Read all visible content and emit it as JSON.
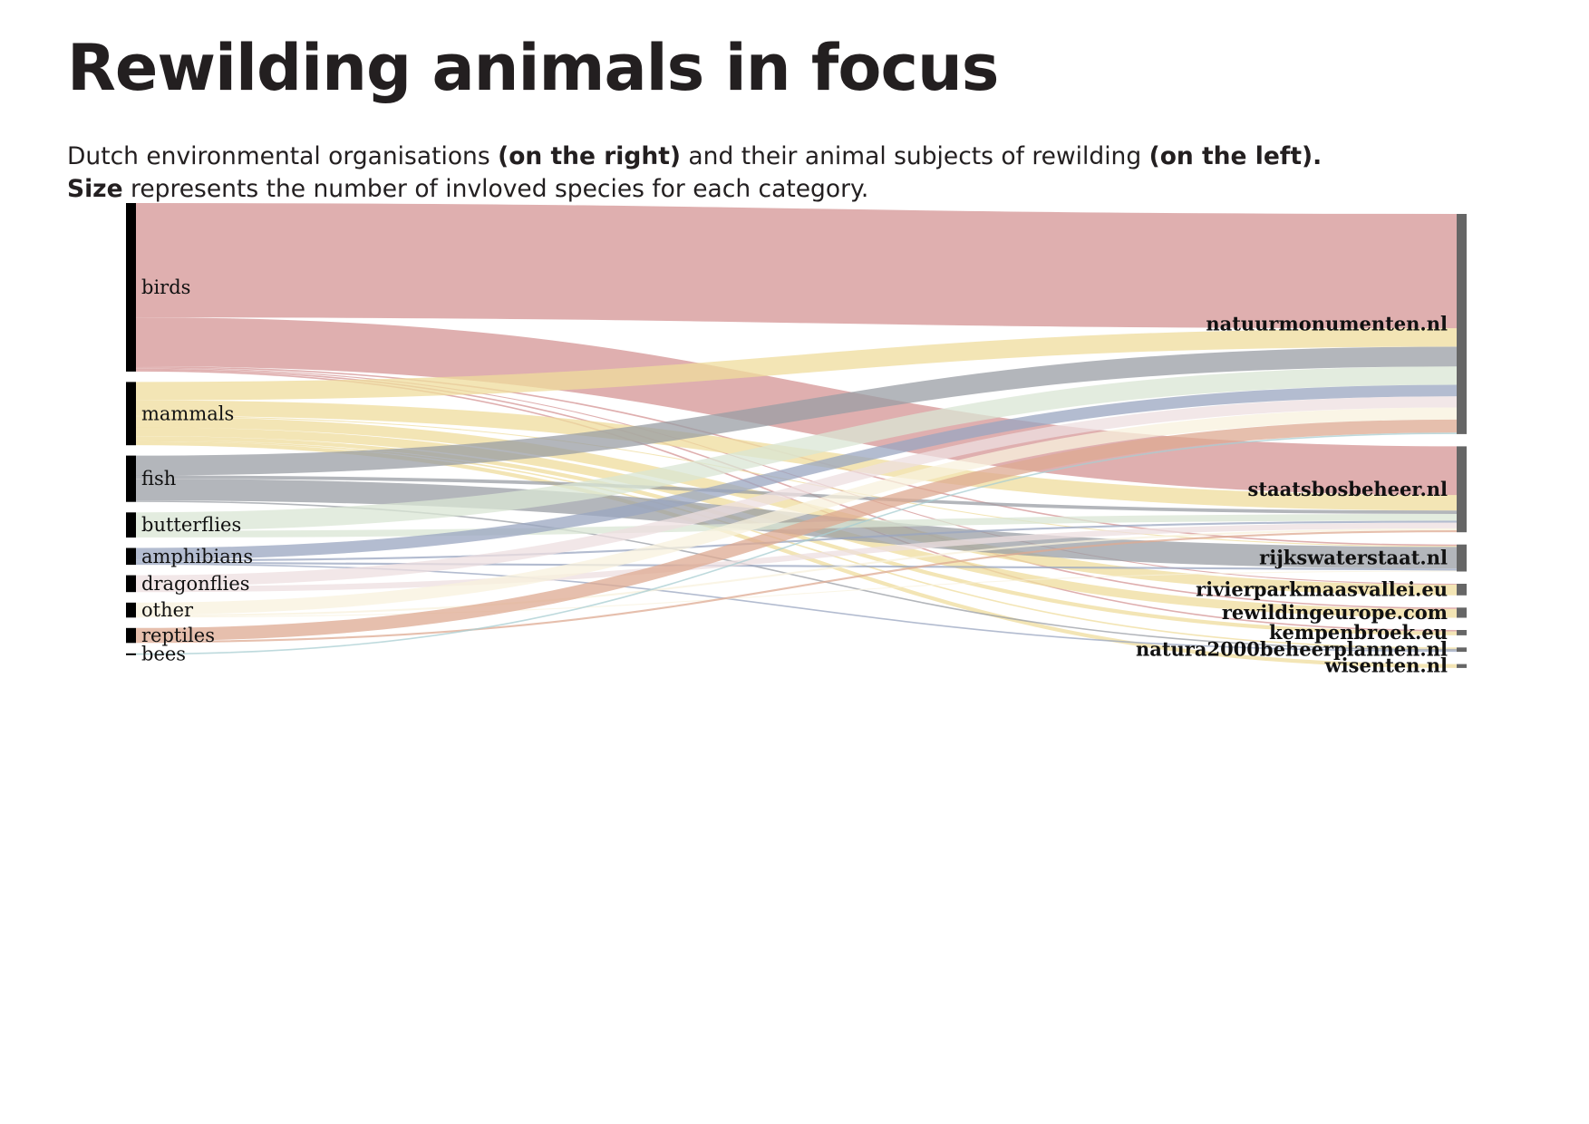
{
  "title": "Rewilding animals in focus",
  "subtitle": {
    "line1_a": "Dutch environmental organisations ",
    "line1_b": "(on the right)",
    "line1_c": "  and their animal subjects of rewilding ",
    "line1_d": "(on the left).",
    "line2_a": "Size",
    "line2_b": " represents the number of invloved species for each category."
  },
  "chart_data": {
    "type": "sankey",
    "sources": [
      {
        "name": "birds",
        "color": "#d49494"
      },
      {
        "name": "mammals",
        "color": "#efdc9c"
      },
      {
        "name": "fish",
        "color": "#999da4"
      },
      {
        "name": "butterflies",
        "color": "#d9e6d4"
      },
      {
        "name": "amphibians",
        "color": "#9aa6c0"
      },
      {
        "name": "dragonflies",
        "color": "#eedfe0"
      },
      {
        "name": "other",
        "color": "#f8f1de"
      },
      {
        "name": "reptiles",
        "color": "#ddaa92"
      },
      {
        "name": "bees",
        "color": "#a8cdd2"
      }
    ],
    "targets": [
      "natuurmonumenten.nl",
      "staatsbosbeheer.nl",
      "rijkswaterstaat.nl",
      "rivierparkmaasvallei.eu",
      "rewildingeurope.com",
      "kempenbroek.eu",
      "natura2000beheerplannen.nl",
      "wisenten.nl"
    ],
    "links": [
      {
        "source": "birds",
        "target": "natuurmonumenten.nl",
        "value": 237
      },
      {
        "source": "birds",
        "target": "staatsbosbeheer.nl",
        "value": 101
      },
      {
        "source": "birds",
        "target": "rijkswaterstaat.nl",
        "value": 3
      },
      {
        "source": "birds",
        "target": "rivierparkmaasvallei.eu",
        "value": 2
      },
      {
        "source": "birds",
        "target": "rewildingeurope.com",
        "value": 3
      },
      {
        "source": "birds",
        "target": "kempenbroek.eu",
        "value": 3
      },
      {
        "source": "mammals",
        "target": "natuurmonumenten.nl",
        "value": 38
      },
      {
        "source": "mammals",
        "target": "staatsbosbeheer.nl",
        "value": 32
      },
      {
        "source": "mammals",
        "target": "rijkswaterstaat.nl",
        "value": 2
      },
      {
        "source": "mammals",
        "target": "rivierparkmaasvallei.eu",
        "value": 22
      },
      {
        "source": "mammals",
        "target": "rewildingeurope.com",
        "value": 18
      },
      {
        "source": "mammals",
        "target": "kempenbroek.eu",
        "value": 8
      },
      {
        "source": "mammals",
        "target": "natura2000beheerplannen.nl",
        "value": 3
      },
      {
        "source": "mammals",
        "target": "wisenten.nl",
        "value": 8
      },
      {
        "source": "fish",
        "target": "natuurmonumenten.nl",
        "value": 41
      },
      {
        "source": "fish",
        "target": "staatsbosbeheer.nl",
        "value": 7
      },
      {
        "source": "fish",
        "target": "rijkswaterstaat.nl",
        "value": 45
      },
      {
        "source": "fish",
        "target": "natura2000beheerplannen.nl",
        "value": 3
      },
      {
        "source": "butterflies",
        "target": "natuurmonumenten.nl",
        "value": 38
      },
      {
        "source": "butterflies",
        "target": "staatsbosbeheer.nl",
        "value": 14
      },
      {
        "source": "amphibians",
        "target": "natuurmonumenten.nl",
        "value": 24
      },
      {
        "source": "amphibians",
        "target": "staatsbosbeheer.nl",
        "value": 4
      },
      {
        "source": "amphibians",
        "target": "rijkswaterstaat.nl",
        "value": 4
      },
      {
        "source": "amphibians",
        "target": "natura2000beheerplannen.nl",
        "value": 3
      },
      {
        "source": "dragonflies",
        "target": "natuurmonumenten.nl",
        "value": 23
      },
      {
        "source": "dragonflies",
        "target": "staatsbosbeheer.nl",
        "value": 12
      },
      {
        "source": "other",
        "target": "natuurmonumenten.nl",
        "value": 25
      },
      {
        "source": "other",
        "target": "staatsbosbeheer.nl",
        "value": 4
      },
      {
        "source": "other",
        "target": "rijkswaterstaat.nl",
        "value": 2
      },
      {
        "source": "reptiles",
        "target": "natuurmonumenten.nl",
        "value": 27
      },
      {
        "source": "reptiles",
        "target": "staatsbosbeheer.nl",
        "value": 4
      },
      {
        "source": "bees",
        "target": "natuurmonumenten.nl",
        "value": 3
      }
    ]
  }
}
